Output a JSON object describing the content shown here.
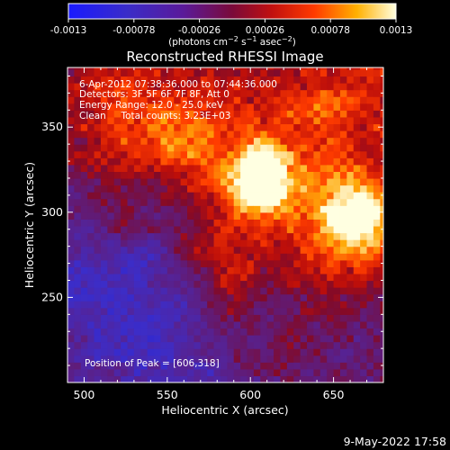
{
  "colorbar": {
    "ticks": [
      "-0.0013",
      "-0.00078",
      "-0.00026",
      "0.00026",
      "0.00078",
      "0.0013"
    ],
    "tick_values": [
      -0.0013,
      -0.00078,
      -0.00026,
      0.00026,
      0.00078,
      0.0013
    ],
    "range": [
      -0.0013,
      0.0013
    ],
    "units_text": "(photons cm",
    "units_sup1": "−2",
    "units_mid": " s",
    "units_sup2": "−1",
    "units_end": " asec",
    "units_sup3": "−2",
    "units_close": ")"
  },
  "chart_data": {
    "type": "heatmap",
    "title": "Reconstructed RHESSI Image",
    "xlabel": "Heliocentric X (arcsec)",
    "ylabel": "Heliocentric Y (arcsec)",
    "xlim": [
      490,
      680
    ],
    "ylim": [
      200,
      385
    ],
    "xticks": [
      500,
      550,
      600,
      650
    ],
    "yticks": [
      250,
      300,
      350
    ],
    "colormap": "RHESSI color table (blue-purple-red-orange-yellow-white)",
    "peak": [
      606,
      318
    ],
    "annotations": [
      "6-Apr-2012 07:38:36.000 to 07:44:36.000",
      "Detectors: 3F 5F 6F 7F 8F, Att 0",
      "Energy Range: 12.0 - 25.0 keV",
      "Clean     Total counts: 3.23E+03",
      "Position of Peak = [606,318]"
    ]
  },
  "footer_date": "9-May-2022 17:58"
}
